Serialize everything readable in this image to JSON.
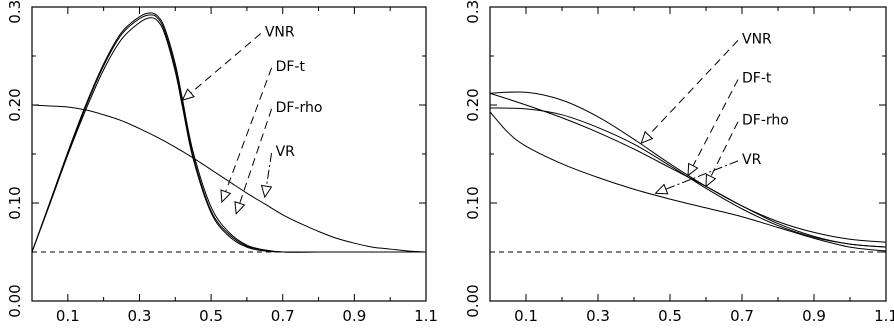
{
  "chart_data": [
    {
      "type": "line",
      "title": "",
      "xlabel": "",
      "ylabel": "",
      "xlim": [
        0.0,
        1.1
      ],
      "ylim": [
        0.0,
        0.3
      ],
      "xticks": [
        "0.1",
        "0.3",
        "0.5",
        "0.7",
        "0.9",
        "1.1"
      ],
      "yticks": [
        "0.00",
        "0.10",
        "0.20",
        "0.30"
      ],
      "grid": false,
      "series": [
        {
          "name": "VNR",
          "x": [
            0,
            0.05,
            0.1,
            0.15,
            0.2,
            0.25,
            0.3,
            0.33,
            0.35,
            0.37,
            0.4,
            0.42,
            0.45,
            0.5,
            0.55,
            0.6,
            0.65,
            0.7,
            0.8,
            0.9,
            1.0,
            1.1
          ],
          "y": [
            0.05,
            0.1,
            0.15,
            0.198,
            0.24,
            0.272,
            0.288,
            0.292,
            0.289,
            0.276,
            0.238,
            0.202,
            0.148,
            0.092,
            0.068,
            0.056,
            0.052,
            0.05,
            0.05,
            0.05,
            0.05,
            0.05
          ]
        },
        {
          "name": "DF-t",
          "x": [
            0,
            0.05,
            0.1,
            0.15,
            0.2,
            0.25,
            0.3,
            0.33,
            0.35,
            0.37,
            0.4,
            0.42,
            0.45,
            0.5,
            0.55,
            0.6,
            0.65,
            0.7,
            0.8,
            0.9,
            1.0,
            1.1
          ],
          "y": [
            0.05,
            0.101,
            0.152,
            0.2,
            0.242,
            0.274,
            0.29,
            0.294,
            0.291,
            0.279,
            0.242,
            0.206,
            0.152,
            0.096,
            0.07,
            0.057,
            0.052,
            0.05,
            0.05,
            0.05,
            0.05,
            0.05
          ]
        },
        {
          "name": "DF-rho",
          "x": [
            0,
            0.05,
            0.1,
            0.15,
            0.2,
            0.25,
            0.3,
            0.33,
            0.35,
            0.37,
            0.4,
            0.42,
            0.45,
            0.5,
            0.55,
            0.6,
            0.65,
            0.7,
            0.8,
            0.9,
            1.0,
            1.1
          ],
          "y": [
            0.05,
            0.099,
            0.149,
            0.195,
            0.236,
            0.267,
            0.284,
            0.289,
            0.286,
            0.273,
            0.234,
            0.198,
            0.145,
            0.09,
            0.066,
            0.055,
            0.051,
            0.05,
            0.05,
            0.05,
            0.05,
            0.05
          ]
        },
        {
          "name": "VR",
          "x": [
            0,
            0.05,
            0.1,
            0.15,
            0.2,
            0.25,
            0.3,
            0.35,
            0.4,
            0.45,
            0.5,
            0.55,
            0.6,
            0.65,
            0.7,
            0.75,
            0.8,
            0.85,
            0.9,
            0.95,
            1.0,
            1.05,
            1.1
          ],
          "y": [
            0.2,
            0.199,
            0.198,
            0.195,
            0.19,
            0.184,
            0.176,
            0.167,
            0.157,
            0.146,
            0.134,
            0.122,
            0.11,
            0.099,
            0.088,
            0.079,
            0.071,
            0.064,
            0.059,
            0.055,
            0.053,
            0.051,
            0.05
          ]
        }
      ],
      "baseline": 0.05,
      "annotations": [
        {
          "text": "VNR",
          "target_series": "VNR",
          "target": [
            0.42,
            0.205
          ],
          "label_at": [
            0.65,
            0.275
          ],
          "leader": "dashed"
        },
        {
          "text": "DF-t",
          "target_series": "DF-t",
          "target": [
            0.53,
            0.101
          ],
          "label_at": [
            0.68,
            0.24
          ],
          "leader": "dashed"
        },
        {
          "text": "DF-rho",
          "target_series": "DF-rho",
          "target": [
            0.57,
            0.089
          ],
          "label_at": [
            0.68,
            0.198
          ],
          "leader": "dashed"
        },
        {
          "text": "VR",
          "target_series": "VR",
          "target": [
            0.65,
            0.106
          ],
          "label_at": [
            0.68,
            0.153
          ],
          "leader": "dashdot"
        }
      ]
    },
    {
      "type": "line",
      "title": "",
      "xlabel": "",
      "ylabel": "",
      "xlim": [
        0.0,
        1.1
      ],
      "ylim": [
        0.0,
        0.3
      ],
      "xticks": [
        "0.1",
        "0.3",
        "0.5",
        "0.7",
        "0.9",
        "1.1"
      ],
      "yticks": [
        "0.00",
        "0.10",
        "0.20",
        "0.30"
      ],
      "grid": false,
      "series": [
        {
          "name": "VNR",
          "x": [
            0,
            0.1,
            0.2,
            0.3,
            0.4,
            0.5,
            0.6,
            0.7,
            0.8,
            0.9,
            1.0,
            1.1
          ],
          "y": [
            0.212,
            0.213,
            0.205,
            0.188,
            0.165,
            0.14,
            0.117,
            0.097,
            0.081,
            0.07,
            0.063,
            0.06
          ]
        },
        {
          "name": "DF-t",
          "x": [
            0,
            0.1,
            0.2,
            0.3,
            0.4,
            0.5,
            0.6,
            0.7,
            0.8,
            0.9,
            1.0,
            1.1
          ],
          "y": [
            0.197,
            0.196,
            0.19,
            0.177,
            0.16,
            0.138,
            0.115,
            0.094,
            0.077,
            0.065,
            0.058,
            0.055
          ]
        },
        {
          "name": "DF-rho",
          "x": [
            0,
            0.1,
            0.2,
            0.3,
            0.4,
            0.5,
            0.6,
            0.7,
            0.8,
            0.9,
            1.0,
            1.1
          ],
          "y": [
            0.212,
            0.2,
            0.187,
            0.172,
            0.155,
            0.136,
            0.117,
            0.097,
            0.079,
            0.066,
            0.058,
            0.055
          ]
        },
        {
          "name": "VR",
          "x": [
            0,
            0.05,
            0.1,
            0.2,
            0.3,
            0.4,
            0.5,
            0.6,
            0.7,
            0.8,
            0.9,
            1.0,
            1.1
          ],
          "y": [
            0.193,
            0.172,
            0.158,
            0.14,
            0.126,
            0.114,
            0.104,
            0.095,
            0.086,
            0.075,
            0.064,
            0.055,
            0.051
          ]
        }
      ],
      "baseline": 0.05,
      "annotations": [
        {
          "text": "VNR",
          "target_series": "VNR",
          "target": [
            0.42,
            0.161
          ],
          "label_at": [
            0.7,
            0.268
          ],
          "leader": "dashed"
        },
        {
          "text": "DF-t",
          "target_series": "DF-t",
          "target": [
            0.55,
            0.128
          ],
          "label_at": [
            0.7,
            0.228
          ],
          "leader": "dashed"
        },
        {
          "text": "DF-rho",
          "target_series": "DF-rho",
          "target": [
            0.6,
            0.117
          ],
          "label_at": [
            0.7,
            0.185
          ],
          "leader": "dashed"
        },
        {
          "text": "VR",
          "target_series": "VR",
          "target": [
            0.46,
            0.11
          ],
          "label_at": [
            0.7,
            0.145
          ],
          "leader": "dashdot"
        }
      ]
    }
  ]
}
